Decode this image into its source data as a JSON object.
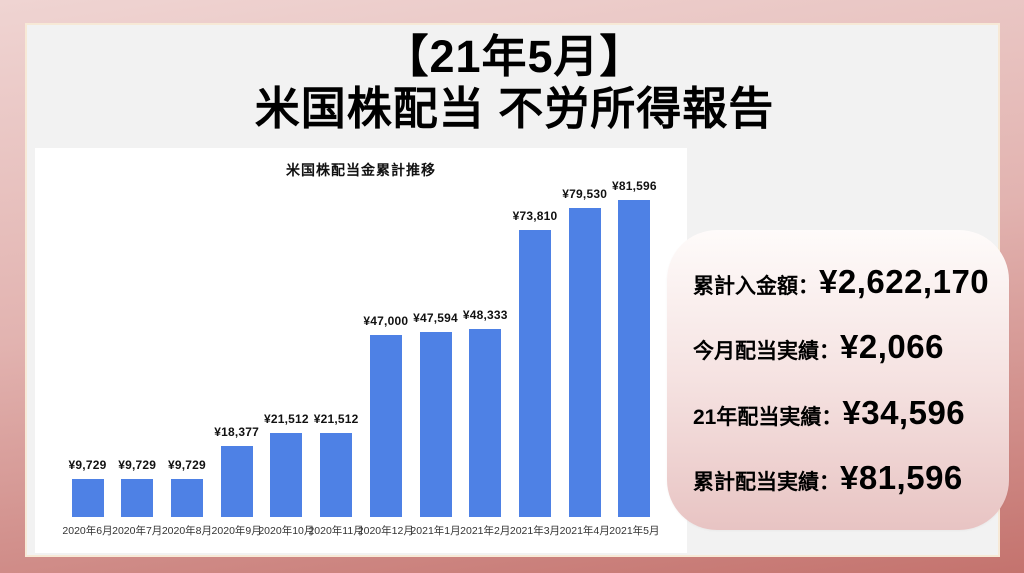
{
  "page": {
    "title_line1": "【21年5月】",
    "title_line2": "米国株配当 不労所得報告"
  },
  "chart_data": {
    "type": "bar",
    "title": "米国株配当金累計推移",
    "categories": [
      "2020年6月",
      "2020年7月",
      "2020年8月",
      "2020年9月",
      "2020年10月",
      "2020年11月",
      "2020年12月",
      "2021年1月",
      "2021年2月",
      "2021年3月",
      "2021年4月",
      "2021年5月"
    ],
    "values": [
      9729,
      9729,
      9729,
      18377,
      21512,
      21512,
      47000,
      47594,
      48333,
      73810,
      79530,
      81596
    ],
    "value_labels": [
      "¥9,729",
      "¥9,729",
      "¥9,729",
      "¥18,377",
      "¥21,512",
      "¥21,512",
      "¥47,000",
      "¥47,594",
      "¥48,333",
      "¥73,810",
      "¥79,530",
      "¥81,596"
    ],
    "xlabel": "",
    "ylabel": "",
    "ylim": [
      0,
      85000
    ],
    "grid": false,
    "legend": false,
    "bar_color": "#4e81e5"
  },
  "summary_panel": {
    "items": [
      {
        "label": "累計入金額：",
        "value": "¥2,622,170"
      },
      {
        "label": "今月配当実績：",
        "value": "¥2,066"
      },
      {
        "label": "21年配当実績：",
        "value": "¥34,596"
      },
      {
        "label": "累計配当実績：",
        "value": "¥81,596"
      }
    ]
  },
  "colors": {
    "frame_top": "#efd4d2",
    "frame_bottom": "#c4736e",
    "card_bg": "#f2f2f2",
    "card_border": "#f7e9d6",
    "chart_bg": "#ffffff",
    "bar": "#4e81e5",
    "panel_top": "#fefbfa",
    "panel_bottom": "#e8c4c3",
    "text": "#000000"
  }
}
